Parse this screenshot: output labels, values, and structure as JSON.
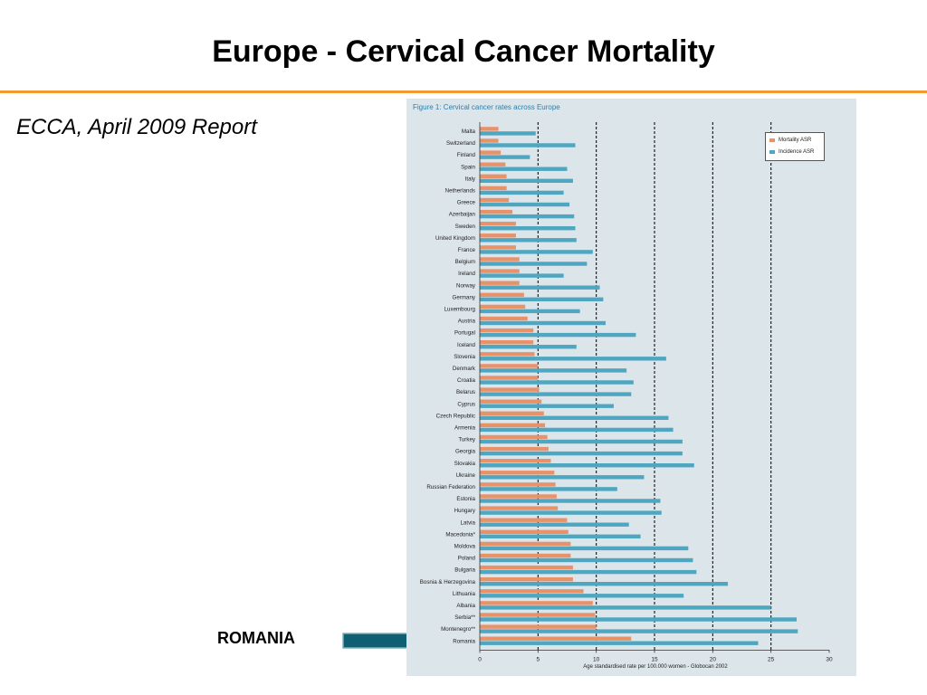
{
  "slide": {
    "title": "Europe - Cervical Cancer Mortality",
    "subtitle": "ECCA, April 2009 Report",
    "callout_label": "ROMANIA"
  },
  "colors": {
    "accent_rule": "#f29a2e",
    "mortality": "#e8926a",
    "incidence": "#4ea6c0",
    "arrow": "#0f5f72",
    "panel": "#dce5ea"
  },
  "chart_data": {
    "type": "bar",
    "orientation": "horizontal",
    "title": "Figure 1: Cervical cancer rates across Europe",
    "xlabel": "Age standardised rate per 100.000 women - Globocan 2002",
    "ylabel": "",
    "xlim": [
      0,
      30
    ],
    "x_ticks": [
      0,
      5,
      10,
      15,
      20,
      25,
      30
    ],
    "gridlines": "dashed at 5, 10, 15, 20, 25",
    "legend_position": "top-right",
    "categories": [
      "Malta",
      "Switzerland",
      "Finland",
      "Spain",
      "Italy",
      "Netherlands",
      "Greece",
      "Azerbaijan",
      "Sweden",
      "United Kingdom",
      "France",
      "Belgium",
      "Ireland",
      "Norway",
      "Germany",
      "Luxembourg",
      "Austria",
      "Portugal",
      "Iceland",
      "Slovenia",
      "Denmark",
      "Croatia",
      "Belarus",
      "Cyprus",
      "Czech Republic",
      "Armenia",
      "Turkey",
      "Georgia",
      "Slovakia",
      "Ukraine",
      "Russian Federation",
      "Estonia",
      "Hungary",
      "Latvia",
      "Macedonia*",
      "Moldova",
      "Poland",
      "Bulgaria",
      "Bosnia & Herzegovina",
      "Lithuania",
      "Albania",
      "Serbia**",
      "Montenegro**",
      "Romania"
    ],
    "series": [
      {
        "name": "Mortality ASR",
        "values": [
          1.6,
          1.6,
          1.8,
          2.2,
          2.3,
          2.3,
          2.5,
          2.8,
          3.1,
          3.1,
          3.1,
          3.4,
          3.4,
          3.4,
          3.8,
          3.9,
          4.1,
          4.6,
          4.6,
          4.7,
          5.0,
          5.0,
          5.1,
          5.3,
          5.5,
          5.6,
          5.8,
          5.9,
          6.1,
          6.4,
          6.5,
          6.6,
          6.7,
          7.5,
          7.6,
          7.8,
          7.8,
          8.0,
          8.0,
          8.9,
          9.7,
          9.9,
          10.0,
          13.0
        ]
      },
      {
        "name": "Incidence ASR",
        "values": [
          4.8,
          8.2,
          4.3,
          7.5,
          8.0,
          7.2,
          7.7,
          8.1,
          8.2,
          8.3,
          9.7,
          9.2,
          7.2,
          10.3,
          10.6,
          8.6,
          10.8,
          13.4,
          8.3,
          16.0,
          12.6,
          13.2,
          13.0,
          11.5,
          16.2,
          16.6,
          17.4,
          17.4,
          18.4,
          14.1,
          11.8,
          15.5,
          15.6,
          12.8,
          13.8,
          17.9,
          18.3,
          18.6,
          21.3,
          17.5,
          25.0,
          27.2,
          27.3,
          23.9
        ]
      }
    ]
  }
}
